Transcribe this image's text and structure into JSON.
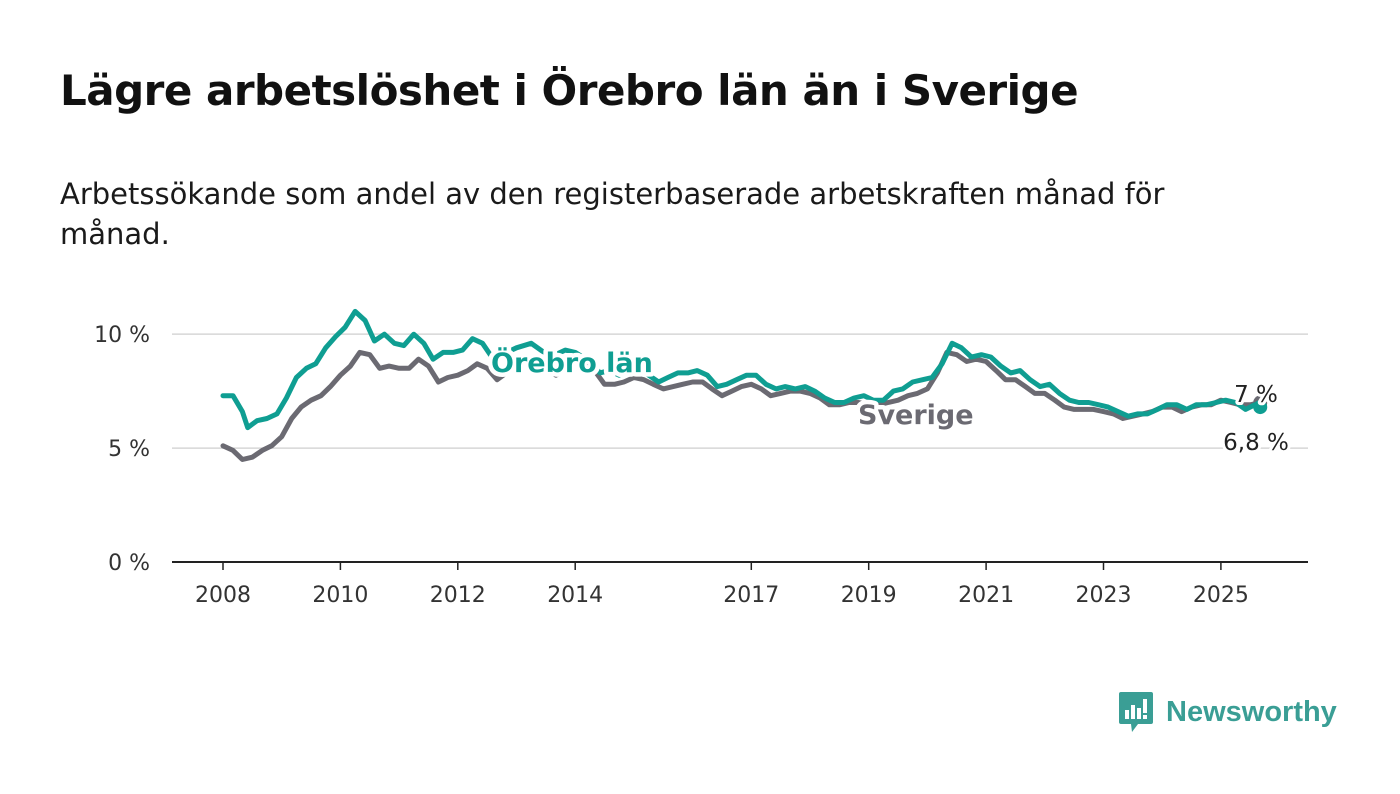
{
  "header": {
    "title": "Lägre arbetslöshet i Örebro län än i Sverige",
    "subtitle": "Arbetssökande som andel av den registerbaserade arbetskraften månad för månad."
  },
  "branding": {
    "logo_icon": "newsworthy-logo-icon",
    "name": "Newsworthy",
    "color": "#3a9e95"
  },
  "chart_data": {
    "type": "line",
    "title": "Lägre arbetslöshet i Örebro län än i Sverige",
    "subtitle": "Arbetssökande som andel av den registerbaserade arbetskraften månad för månad.",
    "xlabel": "",
    "ylabel": "",
    "x_ticks": [
      {
        "value": 2008,
        "label": "2008"
      },
      {
        "value": 2010,
        "label": "2010"
      },
      {
        "value": 2012,
        "label": "2012"
      },
      {
        "value": 2014,
        "label": "2014"
      },
      {
        "value": 2017,
        "label": "2017"
      },
      {
        "value": 2019,
        "label": "2019"
      },
      {
        "value": 2021,
        "label": "2021"
      },
      {
        "value": 2023,
        "label": "2023"
      },
      {
        "value": 2025,
        "label": "2025"
      }
    ],
    "y_ticks": [
      {
        "value": 0,
        "label": "0 %"
      },
      {
        "value": 5,
        "label": "5 %"
      },
      {
        "value": 10,
        "label": "10 %"
      }
    ],
    "xlim": [
      2007.15,
      2026.5
    ],
    "ylim": [
      0,
      11.5
    ],
    "grid": true,
    "legend": "inline labels",
    "series": [
      {
        "name": "Örebro län",
        "color": "#0f9e92",
        "end_label": "6,8 %",
        "end_value": 6.8,
        "points": [
          [
            2008.0,
            7.3
          ],
          [
            2008.17,
            7.3
          ],
          [
            2008.33,
            6.6
          ],
          [
            2008.42,
            5.9
          ],
          [
            2008.58,
            6.2
          ],
          [
            2008.75,
            6.3
          ],
          [
            2008.92,
            6.5
          ],
          [
            2009.08,
            7.2
          ],
          [
            2009.25,
            8.1
          ],
          [
            2009.42,
            8.5
          ],
          [
            2009.58,
            8.7
          ],
          [
            2009.75,
            9.4
          ],
          [
            2009.92,
            9.9
          ],
          [
            2010.08,
            10.3
          ],
          [
            2010.25,
            11.0
          ],
          [
            2010.42,
            10.6
          ],
          [
            2010.58,
            9.7
          ],
          [
            2010.75,
            10.0
          ],
          [
            2010.92,
            9.6
          ],
          [
            2011.08,
            9.5
          ],
          [
            2011.25,
            10.0
          ],
          [
            2011.42,
            9.6
          ],
          [
            2011.58,
            8.9
          ],
          [
            2011.75,
            9.2
          ],
          [
            2011.92,
            9.2
          ],
          [
            2012.08,
            9.3
          ],
          [
            2012.25,
            9.8
          ],
          [
            2012.42,
            9.6
          ],
          [
            2012.58,
            9.0
          ],
          [
            2012.75,
            9.1
          ],
          [
            2013.0,
            9.4
          ],
          [
            2013.25,
            9.6
          ],
          [
            2013.58,
            9.0
          ],
          [
            2013.83,
            9.3
          ],
          [
            2014.0,
            9.2
          ],
          [
            2014.25,
            8.8
          ],
          [
            2014.42,
            8.3
          ],
          [
            2014.58,
            8.4
          ],
          [
            2014.75,
            8.2
          ],
          [
            2014.92,
            8.6
          ],
          [
            2015.08,
            8.5
          ],
          [
            2015.25,
            8.2
          ],
          [
            2015.42,
            7.9
          ],
          [
            2015.58,
            8.1
          ],
          [
            2015.75,
            8.3
          ],
          [
            2015.92,
            8.3
          ],
          [
            2016.08,
            8.4
          ],
          [
            2016.25,
            8.2
          ],
          [
            2016.42,
            7.7
          ],
          [
            2016.58,
            7.8
          ],
          [
            2016.75,
            8.0
          ],
          [
            2016.92,
            8.2
          ],
          [
            2017.08,
            8.2
          ],
          [
            2017.25,
            7.8
          ],
          [
            2017.42,
            7.6
          ],
          [
            2017.58,
            7.7
          ],
          [
            2017.75,
            7.6
          ],
          [
            2017.92,
            7.7
          ],
          [
            2018.08,
            7.5
          ],
          [
            2018.25,
            7.2
          ],
          [
            2018.42,
            7.0
          ],
          [
            2018.58,
            7.0
          ],
          [
            2018.75,
            7.2
          ],
          [
            2018.92,
            7.3
          ],
          [
            2019.08,
            7.1
          ],
          [
            2019.25,
            7.1
          ],
          [
            2019.42,
            7.5
          ],
          [
            2019.58,
            7.6
          ],
          [
            2019.75,
            7.9
          ],
          [
            2019.92,
            8.0
          ],
          [
            2020.08,
            8.1
          ],
          [
            2020.25,
            8.7
          ],
          [
            2020.42,
            9.6
          ],
          [
            2020.58,
            9.4
          ],
          [
            2020.75,
            9.0
          ],
          [
            2020.92,
            9.1
          ],
          [
            2021.08,
            9.0
          ],
          [
            2021.25,
            8.6
          ],
          [
            2021.42,
            8.3
          ],
          [
            2021.58,
            8.4
          ],
          [
            2021.75,
            8.0
          ],
          [
            2021.92,
            7.7
          ],
          [
            2022.08,
            7.8
          ],
          [
            2022.25,
            7.4
          ],
          [
            2022.42,
            7.1
          ],
          [
            2022.58,
            7.0
          ],
          [
            2022.75,
            7.0
          ],
          [
            2022.92,
            6.9
          ],
          [
            2023.08,
            6.8
          ],
          [
            2023.25,
            6.6
          ],
          [
            2023.42,
            6.4
          ],
          [
            2023.58,
            6.5
          ],
          [
            2023.75,
            6.5
          ],
          [
            2023.92,
            6.7
          ],
          [
            2024.08,
            6.9
          ],
          [
            2024.25,
            6.9
          ],
          [
            2024.42,
            6.7
          ],
          [
            2024.58,
            6.9
          ],
          [
            2024.75,
            6.9
          ],
          [
            2024.92,
            7.0
          ],
          [
            2025.08,
            7.1
          ],
          [
            2025.25,
            7.0
          ],
          [
            2025.42,
            6.7
          ],
          [
            2025.58,
            6.9
          ],
          [
            2025.67,
            6.8
          ]
        ]
      },
      {
        "name": "Sverige",
        "color": "#6b6a72",
        "end_label": "7 %",
        "end_value": 7.0,
        "points": [
          [
            2008.0,
            5.1
          ],
          [
            2008.17,
            4.9
          ],
          [
            2008.33,
            4.5
          ],
          [
            2008.5,
            4.6
          ],
          [
            2008.67,
            4.9
          ],
          [
            2008.83,
            5.1
          ],
          [
            2009.0,
            5.5
          ],
          [
            2009.17,
            6.3
          ],
          [
            2009.33,
            6.8
          ],
          [
            2009.5,
            7.1
          ],
          [
            2009.67,
            7.3
          ],
          [
            2009.83,
            7.7
          ],
          [
            2010.0,
            8.2
          ],
          [
            2010.17,
            8.6
          ],
          [
            2010.33,
            9.2
          ],
          [
            2010.5,
            9.1
          ],
          [
            2010.67,
            8.5
          ],
          [
            2010.83,
            8.6
          ],
          [
            2011.0,
            8.5
          ],
          [
            2011.17,
            8.5
          ],
          [
            2011.33,
            8.9
          ],
          [
            2011.5,
            8.6
          ],
          [
            2011.67,
            7.9
          ],
          [
            2011.83,
            8.1
          ],
          [
            2012.0,
            8.2
          ],
          [
            2012.17,
            8.4
          ],
          [
            2012.33,
            8.7
          ],
          [
            2012.5,
            8.5
          ],
          [
            2012.67,
            8.0
          ],
          [
            2012.83,
            8.3
          ],
          [
            2013.0,
            8.5
          ],
          [
            2013.17,
            8.8
          ],
          [
            2013.33,
            8.9
          ],
          [
            2013.5,
            8.6
          ],
          [
            2013.67,
            8.2
          ],
          [
            2013.83,
            8.4
          ],
          [
            2014.0,
            8.5
          ],
          [
            2014.17,
            8.7
          ],
          [
            2014.33,
            8.4
          ],
          [
            2014.5,
            7.8
          ],
          [
            2014.67,
            7.8
          ],
          [
            2014.83,
            7.9
          ],
          [
            2015.0,
            8.1
          ],
          [
            2015.17,
            8.0
          ],
          [
            2015.33,
            7.8
          ],
          [
            2015.5,
            7.6
          ],
          [
            2015.67,
            7.7
          ],
          [
            2015.83,
            7.8
          ],
          [
            2016.0,
            7.9
          ],
          [
            2016.17,
            7.9
          ],
          [
            2016.33,
            7.6
          ],
          [
            2016.5,
            7.3
          ],
          [
            2016.67,
            7.5
          ],
          [
            2016.83,
            7.7
          ],
          [
            2017.0,
            7.8
          ],
          [
            2017.17,
            7.6
          ],
          [
            2017.33,
            7.3
          ],
          [
            2017.5,
            7.4
          ],
          [
            2017.67,
            7.5
          ],
          [
            2017.83,
            7.5
          ],
          [
            2018.0,
            7.4
          ],
          [
            2018.17,
            7.2
          ],
          [
            2018.33,
            6.9
          ],
          [
            2018.5,
            6.9
          ],
          [
            2018.67,
            7.0
          ],
          [
            2018.83,
            7.0
          ],
          [
            2019.0,
            6.9
          ],
          [
            2019.17,
            6.9
          ],
          [
            2019.33,
            7.0
          ],
          [
            2019.5,
            7.1
          ],
          [
            2019.67,
            7.3
          ],
          [
            2019.83,
            7.4
          ],
          [
            2020.0,
            7.6
          ],
          [
            2020.17,
            8.3
          ],
          [
            2020.33,
            9.2
          ],
          [
            2020.5,
            9.1
          ],
          [
            2020.67,
            8.8
          ],
          [
            2020.83,
            8.9
          ],
          [
            2021.0,
            8.8
          ],
          [
            2021.17,
            8.4
          ],
          [
            2021.33,
            8.0
          ],
          [
            2021.5,
            8.0
          ],
          [
            2021.67,
            7.7
          ],
          [
            2021.83,
            7.4
          ],
          [
            2022.0,
            7.4
          ],
          [
            2022.17,
            7.1
          ],
          [
            2022.33,
            6.8
          ],
          [
            2022.5,
            6.7
          ],
          [
            2022.67,
            6.7
          ],
          [
            2022.83,
            6.7
          ],
          [
            2023.0,
            6.6
          ],
          [
            2023.17,
            6.5
          ],
          [
            2023.33,
            6.3
          ],
          [
            2023.5,
            6.4
          ],
          [
            2023.67,
            6.5
          ],
          [
            2023.83,
            6.6
          ],
          [
            2024.0,
            6.8
          ],
          [
            2024.17,
            6.8
          ],
          [
            2024.33,
            6.6
          ],
          [
            2024.5,
            6.8
          ],
          [
            2024.67,
            6.9
          ],
          [
            2024.83,
            6.9
          ],
          [
            2025.0,
            7.1
          ],
          [
            2025.17,
            7.0
          ],
          [
            2025.33,
            6.9
          ],
          [
            2025.5,
            6.9
          ],
          [
            2025.67,
            7.0
          ]
        ]
      }
    ]
  }
}
